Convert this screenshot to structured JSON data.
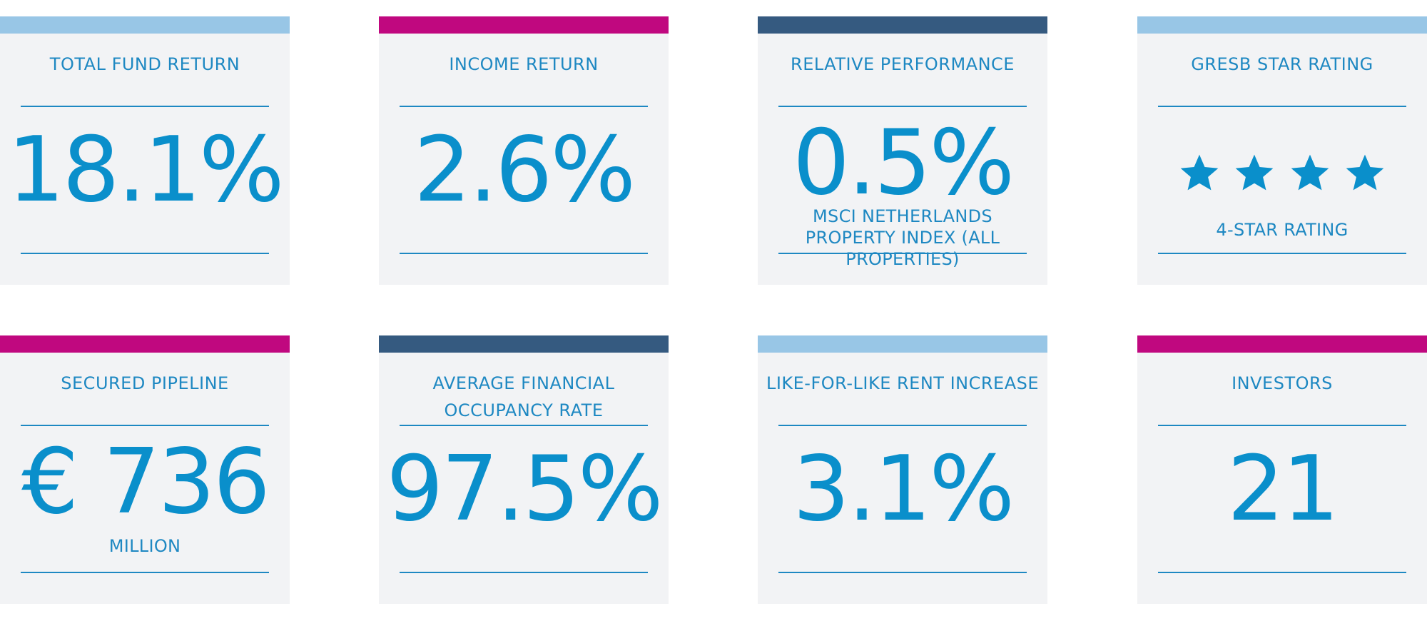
{
  "colors": {
    "card_bg": "#f2f3f5",
    "text": "#1e88c2",
    "value": "#0a8fcb",
    "accent_lightblue": "#98c6e6",
    "accent_magenta": "#c0087f",
    "accent_navy": "#355a80"
  },
  "cards": [
    {
      "title": "TOTAL FUND RETURN",
      "value": "18.1%",
      "accent": "lightblue"
    },
    {
      "title": "INCOME RETURN",
      "value": "2.6%",
      "accent": "magenta"
    },
    {
      "title": "RELATIVE PERFORMANCE",
      "value": "0.5%",
      "sub": "MSCI NETHERLANDS PROPERTY INDEX (ALL PROPERTIES)",
      "accent": "navy"
    },
    {
      "title": "GRESB STAR RATING",
      "stars": 4,
      "sub": "4-STAR RATING",
      "accent": "lightblue"
    },
    {
      "title": "SECURED PIPELINE",
      "value": "€ 736",
      "sub": "MILLION",
      "accent": "magenta"
    },
    {
      "title": "AVERAGE FINANCIAL OCCUPANCY RATE",
      "value": "97.5%",
      "accent": "navy"
    },
    {
      "title": "LIKE-FOR-LIKE RENT INCREASE",
      "value": "3.1%",
      "accent": "lightblue"
    },
    {
      "title": "INVESTORS",
      "value": "21",
      "accent": "magenta"
    }
  ],
  "icons": {
    "rating_star": "star-icon"
  }
}
